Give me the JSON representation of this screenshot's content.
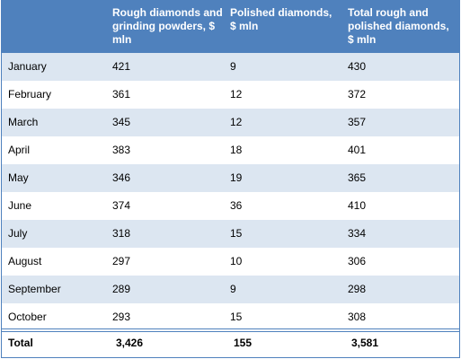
{
  "table": {
    "headers": [
      "",
      "Rough diamonds and grinding powders, $ mln",
      "Polished diamonds, $ mln",
      "Total rough and polished diamonds, $ mln"
    ],
    "rows": [
      [
        "January",
        "421",
        "9",
        "430"
      ],
      [
        "February",
        "361",
        "12",
        "372"
      ],
      [
        "March",
        "345",
        "12",
        "357"
      ],
      [
        "April",
        "383",
        "18",
        "401"
      ],
      [
        "May",
        "346",
        "19",
        "365"
      ],
      [
        "June",
        "374",
        "36",
        "410"
      ],
      [
        "July",
        "318",
        "15",
        "334"
      ],
      [
        "August",
        "297",
        "10",
        "306"
      ],
      [
        "September",
        "289",
        "9",
        "298"
      ],
      [
        "October",
        "293",
        "15",
        "308"
      ]
    ],
    "total": [
      "Total",
      "3,426",
      "155",
      "3,581"
    ]
  },
  "colors": {
    "header_bg": "#4f81bd",
    "header_text": "#ffffff",
    "stripe_bg": "#dce6f1",
    "border": "#4f81bd"
  }
}
